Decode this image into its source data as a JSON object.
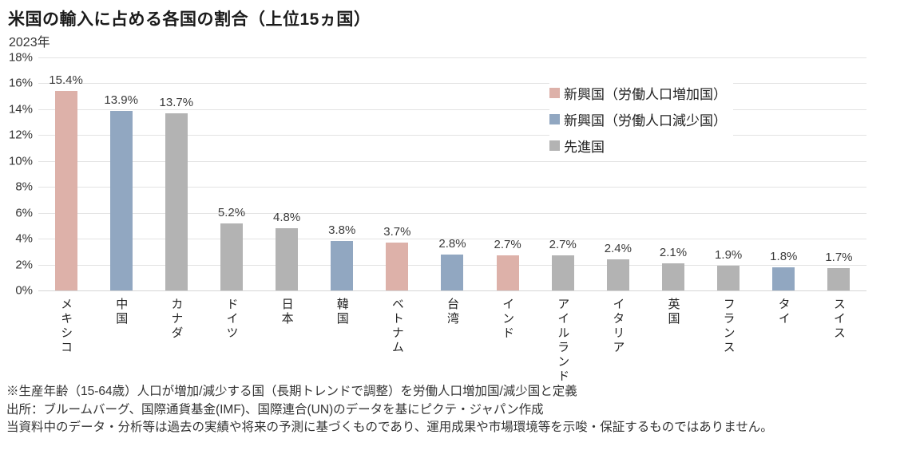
{
  "title": "米国の輸入に占める各国の割合（上位15ヵ国）",
  "subtitle": "2023年",
  "colors": {
    "emerging_growing": "#ddb1a9",
    "emerging_declining": "#91a7c1",
    "developed": "#b3b3b3"
  },
  "chart_data": {
    "type": "bar",
    "title": "米国の輸入に占める各国の割合（上位15ヵ国）",
    "subtitle": "2023年",
    "categories": [
      "メキシコ",
      "中国",
      "カナダ",
      "ドイツ",
      "日本",
      "韓国",
      "ベトナム",
      "台湾",
      "インド",
      "アイルランド",
      "イタリア",
      "英国",
      "フランス",
      "タイ",
      "スイス"
    ],
    "values": [
      15.4,
      13.9,
      13.7,
      5.2,
      4.8,
      3.8,
      3.7,
      2.8,
      2.7,
      2.7,
      2.4,
      2.1,
      1.9,
      1.8,
      1.7
    ],
    "value_labels": [
      "15.4%",
      "13.9%",
      "13.7%",
      "5.2%",
      "4.8%",
      "3.8%",
      "3.7%",
      "2.8%",
      "2.7%",
      "2.7%",
      "2.4%",
      "2.1%",
      "1.9%",
      "1.8%",
      "1.7%"
    ],
    "groups": [
      "emerging_growing",
      "emerging_declining",
      "developed",
      "developed",
      "developed",
      "emerging_declining",
      "emerging_growing",
      "emerging_declining",
      "emerging_growing",
      "developed",
      "developed",
      "developed",
      "developed",
      "emerging_declining",
      "developed"
    ],
    "xlabel": "",
    "ylabel": "",
    "ylim": [
      0,
      18
    ],
    "ytick_labels": [
      "0%",
      "2%",
      "4%",
      "6%",
      "8%",
      "10%",
      "12%",
      "14%",
      "16%",
      "18%"
    ],
    "grid": true,
    "legend": {
      "position": "top-right",
      "items": [
        {
          "label": "新興国（労働人口増加国）",
          "group": "emerging_growing"
        },
        {
          "label": "新興国（労働人口減少国）",
          "group": "emerging_declining"
        },
        {
          "label": "先進国",
          "group": "developed"
        }
      ]
    }
  },
  "footer": {
    "note1": "※生産年齢（15-64歳）人口が増加/減少する国（長期トレンドで調整）を労働人口増加国/減少国と定義",
    "note2": "出所：ブルームバーグ、国際通貨基金(IMF)、国際連合(UN)のデータを基にピクテ・ジャパン作成",
    "note3": "当資料中のデータ・分析等は過去の実績や将来の予測に基づくものであり、運用成果や市場環境等を示唆・保証するものではありません。"
  }
}
